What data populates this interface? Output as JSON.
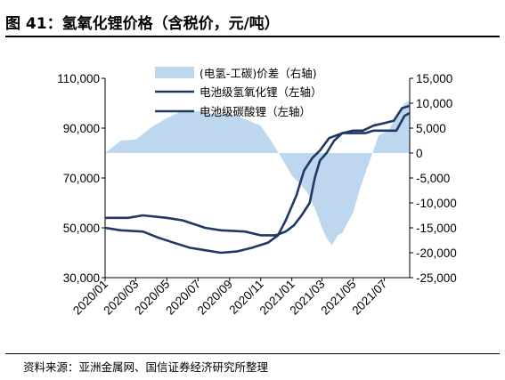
{
  "header": {
    "title": "图 41：氢氧化锂价格（含税价，元/吨）"
  },
  "footer": {
    "source": "资料来源：亚洲金属网、国信证券经济研究所整理"
  },
  "chart_data": {
    "type": "line",
    "x_ticks": [
      "2020/01",
      "2020/03",
      "2020/05",
      "2020/07",
      "2020/09",
      "2020/11",
      "2021/01",
      "2021/03",
      "2021/05",
      "2021/07"
    ],
    "x_range": [
      "2020-01-01",
      "2021-08-20"
    ],
    "y_left": {
      "ticks": [
        "30,000",
        "50,000",
        "70,000",
        "90,000",
        "110,000"
      ],
      "range": [
        30000,
        110000
      ]
    },
    "y_right": {
      "ticks": [
        "-25,000",
        "-20,000",
        "-15,000",
        "-10,000",
        "-5,000",
        "0",
        "5,000",
        "10,000",
        "15,000"
      ],
      "range": [
        -25000,
        15000
      ]
    },
    "legend": [
      {
        "label": "(电氢-工碳)价差（右轴)",
        "style": "area",
        "color": "#bdd7ee"
      },
      {
        "label": "电池级氢氧化锂（左轴）",
        "style": "line",
        "color": "#203864"
      },
      {
        "label": "电池级碳酸锂（左轴）",
        "style": "line",
        "color": "#203864"
      }
    ],
    "series": [
      {
        "name": "(电氢-工碳)价差（右轴)",
        "axis": "right",
        "type": "area",
        "points": [
          [
            "2020-01-01",
            0
          ],
          [
            "2020-02-01",
            2500
          ],
          [
            "2020-03-01",
            2700
          ],
          [
            "2020-04-01",
            5200
          ],
          [
            "2020-05-01",
            7000
          ],
          [
            "2020-06-01",
            8500
          ],
          [
            "2020-07-01",
            8400
          ],
          [
            "2020-08-01",
            7800
          ],
          [
            "2020-09-01",
            8000
          ],
          [
            "2020-10-01",
            6800
          ],
          [
            "2020-11-01",
            5500
          ],
          [
            "2020-11-20",
            2700
          ],
          [
            "2020-12-15",
            -1500
          ],
          [
            "2021-01-01",
            -4500
          ],
          [
            "2021-01-15",
            -6000
          ],
          [
            "2021-02-01",
            -8000
          ],
          [
            "2021-02-15",
            -11000
          ],
          [
            "2021-03-01",
            -15000
          ],
          [
            "2021-03-10",
            -17000
          ],
          [
            "2021-03-20",
            -18500
          ],
          [
            "2021-04-01",
            -16500
          ],
          [
            "2021-04-10",
            -16000
          ],
          [
            "2021-04-20",
            -14000
          ],
          [
            "2021-05-01",
            -12000
          ],
          [
            "2021-05-15",
            -7000
          ],
          [
            "2021-06-01",
            -2000
          ],
          [
            "2021-06-20",
            3500
          ],
          [
            "2021-07-10",
            4500
          ],
          [
            "2021-07-25",
            7500
          ],
          [
            "2021-08-10",
            10000
          ],
          [
            "2021-08-20",
            10500
          ]
        ]
      },
      {
        "name": "电池级氢氧化锂（左轴）",
        "axis": "left",
        "type": "line",
        "points": [
          [
            "2020-01-01",
            54000
          ],
          [
            "2020-02-15",
            54000
          ],
          [
            "2020-03-15",
            55000
          ],
          [
            "2020-05-01",
            54000
          ],
          [
            "2020-06-01",
            53000
          ],
          [
            "2020-07-15",
            50000
          ],
          [
            "2020-08-15",
            49000
          ],
          [
            "2020-10-01",
            48500
          ],
          [
            "2020-11-01",
            47000
          ],
          [
            "2020-12-01",
            47000
          ],
          [
            "2020-12-20",
            48500
          ],
          [
            "2021-01-05",
            51000
          ],
          [
            "2021-01-20",
            55000
          ],
          [
            "2021-02-05",
            60000
          ],
          [
            "2021-02-15",
            70000
          ],
          [
            "2021-02-25",
            77000
          ],
          [
            "2021-03-10",
            80000
          ],
          [
            "2021-03-25",
            85000
          ],
          [
            "2021-04-10",
            88000
          ],
          [
            "2021-05-01",
            89000
          ],
          [
            "2021-05-20",
            89000
          ],
          [
            "2021-06-10",
            91000
          ],
          [
            "2021-07-01",
            92000
          ],
          [
            "2021-07-20",
            93000
          ],
          [
            "2021-08-05",
            98000
          ],
          [
            "2021-08-20",
            99000
          ]
        ]
      },
      {
        "name": "电池级碳酸锂（左轴）",
        "axis": "left",
        "type": "line",
        "points": [
          [
            "2020-01-01",
            50000
          ],
          [
            "2020-02-01",
            49000
          ],
          [
            "2020-03-15",
            48500
          ],
          [
            "2020-04-15",
            46000
          ],
          [
            "2020-05-15",
            44000
          ],
          [
            "2020-06-15",
            42000
          ],
          [
            "2020-07-15",
            41000
          ],
          [
            "2020-08-15",
            40000
          ],
          [
            "2020-09-15",
            40500
          ],
          [
            "2020-10-15",
            42000
          ],
          [
            "2020-11-15",
            44000
          ],
          [
            "2020-12-05",
            47000
          ],
          [
            "2020-12-20",
            53000
          ],
          [
            "2021-01-10",
            63000
          ],
          [
            "2021-01-25",
            73000
          ],
          [
            "2021-02-10",
            78000
          ],
          [
            "2021-02-25",
            81000
          ],
          [
            "2021-03-15",
            86000
          ],
          [
            "2021-04-10",
            88000
          ],
          [
            "2021-04-25",
            88000
          ],
          [
            "2021-05-10",
            88000
          ],
          [
            "2021-05-25",
            88000
          ],
          [
            "2021-06-10",
            89000
          ],
          [
            "2021-06-25",
            89000
          ],
          [
            "2021-07-10",
            89000
          ],
          [
            "2021-07-25",
            89000
          ],
          [
            "2021-08-10",
            95000
          ],
          [
            "2021-08-20",
            96000
          ]
        ]
      }
    ]
  }
}
